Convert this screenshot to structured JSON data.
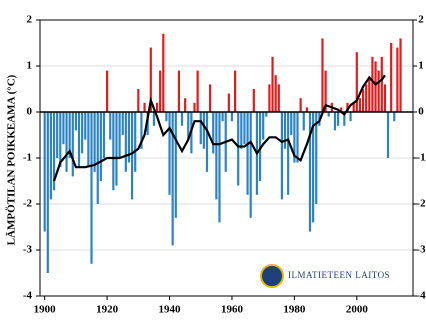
{
  "chart_data": {
    "type": "bar",
    "y_label": "LÄMPÖTILAN POIKKEAMA (°C)",
    "annotation": "ILMATIETEEN LAITOS",
    "xlim": [
      1898.5,
      2018
    ],
    "xticks": [
      1900,
      1920,
      1940,
      1960,
      1980,
      2000
    ],
    "ylim": [
      -4,
      2
    ],
    "yticks": [
      -4,
      -3,
      -2,
      -1,
      0,
      1,
      2
    ],
    "grid": true,
    "series": [
      {
        "type": "bar",
        "positive_color": "#e31a1c",
        "negative_color": "#2b83c6",
        "x": [
          1900,
          1901,
          1902,
          1903,
          1904,
          1905,
          1906,
          1907,
          1908,
          1909,
          1910,
          1911,
          1912,
          1913,
          1914,
          1915,
          1916,
          1917,
          1918,
          1919,
          1920,
          1921,
          1922,
          1923,
          1924,
          1925,
          1926,
          1927,
          1928,
          1929,
          1930,
          1931,
          1932,
          1933,
          1934,
          1935,
          1936,
          1937,
          1938,
          1939,
          1940,
          1941,
          1942,
          1943,
          1944,
          1945,
          1946,
          1947,
          1948,
          1949,
          1950,
          1951,
          1952,
          1953,
          1954,
          1955,
          1956,
          1957,
          1958,
          1959,
          1960,
          1961,
          1962,
          1963,
          1964,
          1965,
          1966,
          1967,
          1968,
          1969,
          1970,
          1971,
          1972,
          1973,
          1974,
          1975,
          1976,
          1977,
          1978,
          1979,
          1980,
          1981,
          1982,
          1983,
          1984,
          1985,
          1986,
          1987,
          1988,
          1989,
          1990,
          1991,
          1992,
          1993,
          1994,
          1995,
          1996,
          1997,
          1998,
          1999,
          2000,
          2001,
          2002,
          2003,
          2004,
          2005,
          2006,
          2007,
          2008,
          2009,
          2010,
          2011,
          2012,
          2013,
          2014
        ],
        "values": [
          -2.6,
          -3.5,
          -1.9,
          -1.7,
          -1.0,
          -1.2,
          -0.7,
          -1.3,
          -1.0,
          -1.4,
          -0.4,
          -1.2,
          -0.9,
          -0.6,
          -1.2,
          -3.3,
          -1.3,
          -2.0,
          -1.5,
          -1.0,
          0.9,
          -0.6,
          -1.7,
          -1.6,
          -1.0,
          -0.5,
          -1.3,
          -1.1,
          -1.9,
          -1.3,
          0.5,
          -0.8,
          0.2,
          -0.5,
          1.4,
          -0.3,
          0.2,
          0.9,
          1.7,
          -0.2,
          -1.8,
          -2.9,
          -2.3,
          0.9,
          -0.3,
          0.3,
          -0.6,
          -0.9,
          0.2,
          0.9,
          -0.7,
          -0.8,
          -1.3,
          0.6,
          -0.9,
          -1.9,
          -2.4,
          -0.2,
          -1.3,
          0.4,
          -0.2,
          0.9,
          -1.6,
          -0.8,
          -0.7,
          -1.8,
          -2.3,
          0.5,
          -1.8,
          -1.5,
          -0.6,
          -0.1,
          0.6,
          1.2,
          0.8,
          0.6,
          -1.9,
          -0.8,
          -1.8,
          -0.5,
          -1.1,
          -1.1,
          0.3,
          -0.4,
          0.1,
          -2.6,
          -2.4,
          -2.0,
          -0.3,
          1.6,
          0.9,
          -0.1,
          0.2,
          -0.4,
          -0.3,
          0.1,
          -0.3,
          0.2,
          -0.2,
          0.2,
          1.3,
          0.3,
          0.5,
          0.6,
          0.7,
          1.2,
          1.1,
          0.9,
          1.2,
          0.6,
          -1.0,
          1.5,
          -0.2,
          1.4,
          1.6
        ]
      },
      {
        "type": "line",
        "color": "#000000",
        "x": [
          1903,
          1905,
          1908,
          1910,
          1913,
          1916,
          1920,
          1924,
          1928,
          1930,
          1932,
          1934,
          1936,
          1938,
          1940,
          1942,
          1944,
          1946,
          1948,
          1950,
          1952,
          1954,
          1956,
          1958,
          1960,
          1962,
          1964,
          1966,
          1968,
          1970,
          1972,
          1974,
          1976,
          1978,
          1980,
          1982,
          1984,
          1986,
          1988,
          1990,
          1992,
          1994,
          1996,
          1998,
          2000,
          2002,
          2004,
          2006,
          2008,
          2009
        ],
        "values": [
          -1.5,
          -1.1,
          -0.85,
          -1.2,
          -1.2,
          -1.15,
          -1.0,
          -1.0,
          -0.9,
          -0.8,
          -0.5,
          0.25,
          -0.1,
          -0.5,
          -0.35,
          -0.6,
          -0.85,
          -0.6,
          -0.2,
          -0.2,
          -0.4,
          -0.7,
          -0.7,
          -0.65,
          -0.6,
          -0.75,
          -0.75,
          -0.65,
          -0.9,
          -0.7,
          -0.55,
          -0.55,
          -0.65,
          -0.6,
          -0.95,
          -1.05,
          -0.7,
          -0.3,
          -0.2,
          0.15,
          0.1,
          0.05,
          -0.05,
          0.15,
          0.25,
          0.55,
          0.75,
          0.6,
          0.7,
          0.8
        ]
      }
    ]
  }
}
